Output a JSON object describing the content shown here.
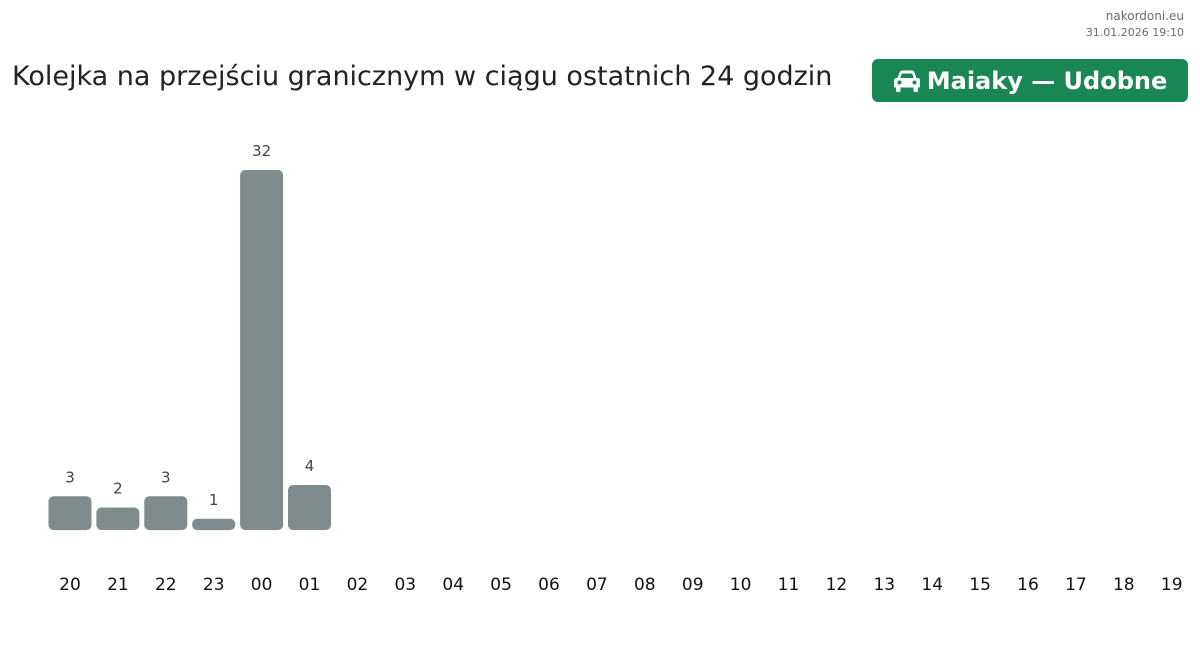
{
  "header": {
    "site": "nakordoni.eu",
    "timestamp": "31.01.2026 19:10",
    "title": "Kolejka na przejściu granicznym w ciągu ostatnich 24 godzin",
    "badge_label": "Maiaky — Udobne",
    "badge_icon": "car-icon",
    "badge_color": "#198754"
  },
  "chart_data": {
    "type": "bar",
    "title": "Kolejka na przejściu granicznym w ciągu ostatnich 24 godzin",
    "xlabel": "",
    "ylabel": "",
    "categories": [
      "20",
      "21",
      "22",
      "23",
      "00",
      "01",
      "02",
      "03",
      "04",
      "05",
      "06",
      "07",
      "08",
      "09",
      "10",
      "11",
      "12",
      "13",
      "14",
      "15",
      "16",
      "17",
      "18",
      "19"
    ],
    "values": [
      3,
      2,
      3,
      1,
      32,
      4,
      null,
      null,
      null,
      null,
      null,
      null,
      null,
      null,
      null,
      null,
      null,
      null,
      null,
      null,
      null,
      null,
      null,
      null
    ],
    "ylim": [
      0,
      32
    ],
    "bar_color": "#7f8c8d",
    "grid": false,
    "legend": "none"
  }
}
